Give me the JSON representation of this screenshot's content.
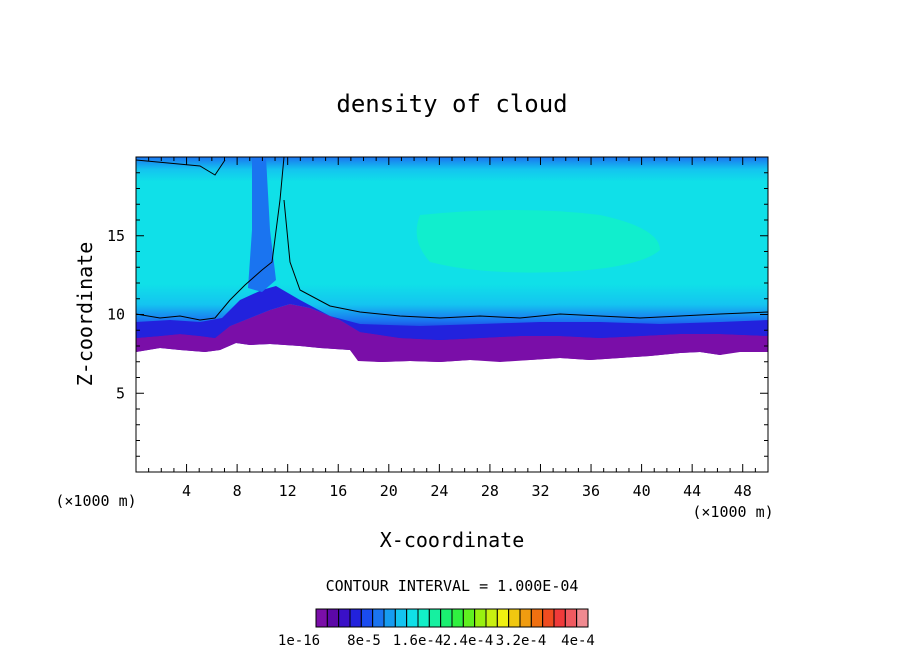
{
  "chart_data": {
    "type": "heatmap",
    "title": "density of cloud",
    "xlabel": "X-coordinate",
    "ylabel": "Z-coordinate",
    "x_unit": "(×1000 m)",
    "xlim": [
      0,
      50
    ],
    "ylim": [
      0,
      20
    ],
    "x_ticks": [
      4,
      8,
      12,
      16,
      20,
      24,
      28,
      32,
      36,
      40,
      44,
      48
    ],
    "y_ticks": [
      5,
      10,
      15
    ],
    "contour_interval_label": "CONTOUR INTERVAL = 1.000E-04",
    "colorbar": {
      "labels": [
        "1e-16",
        "8e-5",
        "1.6e-4",
        "2.4e-4",
        "3.2e-4",
        "4e-4"
      ],
      "colors": [
        "#7a0ea8",
        "#5c08a8",
        "#3a10c8",
        "#2222dd",
        "#1a4cf0",
        "#1a74f0",
        "#169cf0",
        "#14c4f0",
        "#10e0e8",
        "#12f0c8",
        "#16f0a0",
        "#1af070",
        "#30f040",
        "#60f020",
        "#98f010",
        "#c8f010",
        "#f0f010",
        "#f0c810",
        "#f09c10",
        "#f07010",
        "#f04c20",
        "#f03a3a",
        "#f05a60",
        "#f08a90"
      ]
    },
    "regions": [
      {
        "level": "1e-16 – 8e-5",
        "z_range": [
          7,
          10
        ],
        "color": "#7a0ea8"
      },
      {
        "level": "8e-5 – 1.2e-4",
        "z_range": [
          9,
          11
        ],
        "color": "#2222dd"
      },
      {
        "level": "1.2e-4 – 1.6e-4",
        "z_range": [
          10,
          19.5
        ],
        "color": "#10e0e8"
      },
      {
        "level": "1.6e-4 – 1.8e-4",
        "z_range": [
          13,
          17
        ],
        "color": "#12f0c8"
      }
    ]
  }
}
